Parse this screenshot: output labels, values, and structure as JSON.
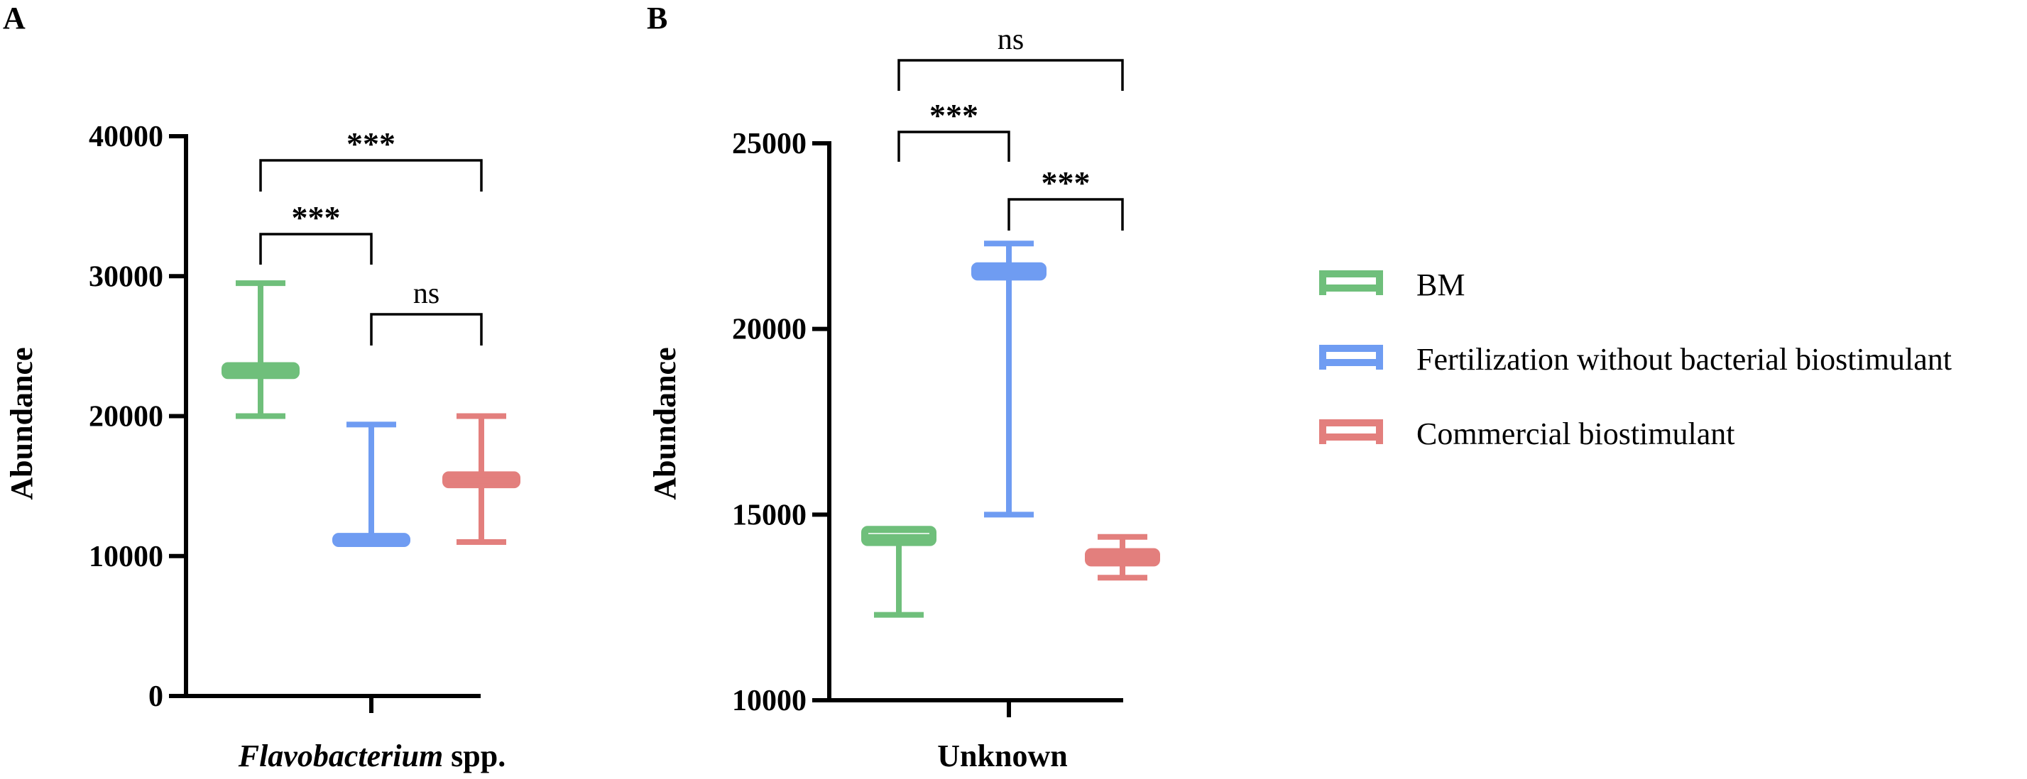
{
  "chart_data": [
    {
      "panel_label": "A",
      "type": "box",
      "xlabel_italic": "Flavobacterium",
      "xlabel_rest": " spp.",
      "ylabel": "Abundance",
      "ylim": [
        0,
        40000
      ],
      "yticks": [
        0,
        10000,
        20000,
        30000,
        40000
      ],
      "y_tick_labels": [
        "0",
        "10000",
        "20000",
        "30000",
        "40000"
      ],
      "series": [
        {
          "name": "BM",
          "min": 20000,
          "q1": 22900,
          "median": 23200,
          "q3": 23600,
          "max": 29500
        },
        {
          "name": "Fertilization without bacterial biostimulant",
          "min": 10900,
          "q1": 10900,
          "median": 11100,
          "q3": 11400,
          "max": 19400
        },
        {
          "name": "Commercial biostimulant",
          "min": 11000,
          "q1": 15100,
          "median": 15400,
          "q3": 15800,
          "max": 20000
        }
      ],
      "comparisons": [
        {
          "from": 0,
          "to": 1,
          "label": "***",
          "level": 0
        },
        {
          "from": 1,
          "to": 2,
          "label": "ns",
          "level": 0
        },
        {
          "from": 0,
          "to": 2,
          "label": "***",
          "level": 1
        }
      ]
    },
    {
      "panel_label": "B",
      "type": "box",
      "xlabel": "Unknown",
      "ylabel": "Abundance",
      "ylim": [
        10000,
        25000
      ],
      "yticks": [
        10000,
        15000,
        20000,
        25000
      ],
      "y_tick_labels": [
        "10000",
        "15000",
        "20000",
        "25000"
      ],
      "series": [
        {
          "name": "BM",
          "min": 12300,
          "q1": 14250,
          "median": 14400,
          "q3": 14600,
          "max": 14600
        },
        {
          "name": "Fertilization without bacterial biostimulant",
          "min": 15000,
          "q1": 21400,
          "median": 21550,
          "q3": 21700,
          "max": 22300
        },
        {
          "name": "Commercial biostimulant",
          "min": 13300,
          "q1": 13700,
          "median": 13850,
          "q3": 14000,
          "max": 14400
        }
      ],
      "comparisons": [
        {
          "from": 0,
          "to": 1,
          "label": "***",
          "level": 0
        },
        {
          "from": 1,
          "to": 2,
          "label": "***",
          "level": 0
        },
        {
          "from": 0,
          "to": 2,
          "label": "ns",
          "level": 1
        }
      ]
    }
  ],
  "legend": {
    "placement": "right",
    "items": [
      {
        "label": "BM",
        "color": "#6fbf7b"
      },
      {
        "label": "Fertilization without bacterial biostimulant",
        "color": "#6f9cf2"
      },
      {
        "label": "Commercial biostimulant",
        "color": "#e37f7d"
      }
    ]
  }
}
